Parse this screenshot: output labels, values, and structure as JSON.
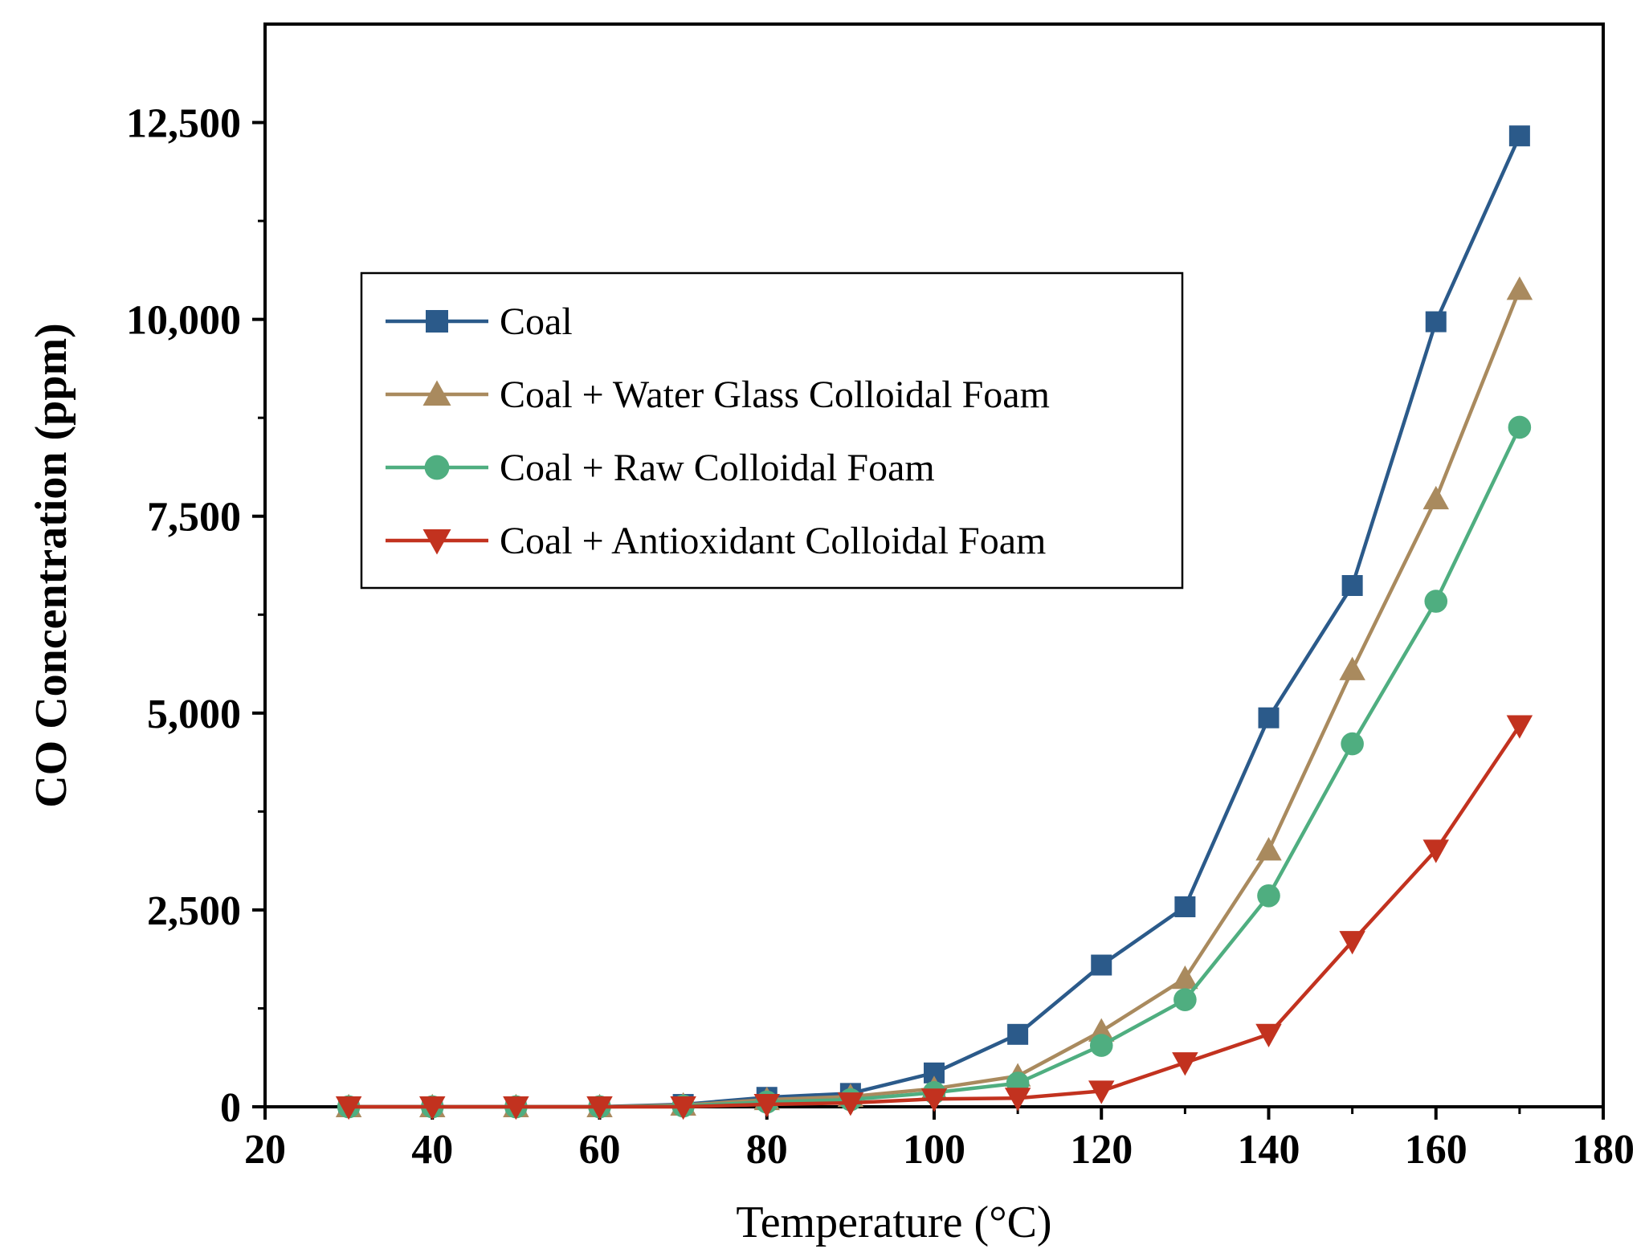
{
  "chart_data": {
    "type": "line",
    "title": "",
    "xlabel": "Temperature (°C)",
    "ylabel": "CO Concentration (ppm)",
    "xlim": [
      20,
      180
    ],
    "ylim": [
      0,
      13750
    ],
    "x_ticks": [
      20,
      40,
      60,
      80,
      100,
      120,
      140,
      160,
      180
    ],
    "x_tick_labels": [
      "20",
      "40",
      "60",
      "80",
      "100",
      "120",
      "140",
      "160",
      "180"
    ],
    "y_ticks": [
      0,
      2500,
      5000,
      7500,
      10000,
      12500
    ],
    "y_tick_labels": [
      "0",
      "2,500",
      "5,000",
      "7,500",
      "10,000",
      "12,500"
    ],
    "legend_position": "upper-left",
    "x": [
      30,
      40,
      50,
      60,
      70,
      80,
      90,
      100,
      110,
      120,
      130,
      140,
      150,
      160,
      170
    ],
    "series": [
      {
        "name": "Coal",
        "color": "#2b5a8a",
        "marker": "square",
        "values": [
          0,
          0,
          0,
          0,
          30,
          120,
          170,
          430,
          920,
          1800,
          2540,
          4940,
          6620,
          9970,
          12330
        ]
      },
      {
        "name": "Coal + Water Glass Colloidal Foam",
        "color": "#a98a5e",
        "marker": "triangle-up",
        "values": [
          0,
          0,
          0,
          0,
          20,
          90,
          130,
          230,
          390,
          960,
          1630,
          3260,
          5550,
          7720,
          10380
        ]
      },
      {
        "name": "Coal + Raw Colloidal Foam",
        "color": "#4fae80",
        "marker": "circle",
        "values": [
          0,
          0,
          0,
          0,
          10,
          60,
          90,
          180,
          300,
          780,
          1360,
          2680,
          4610,
          6420,
          8630
        ]
      },
      {
        "name": "Coal + Antioxidant Colloidal Foam",
        "color": "#c2321f",
        "marker": "triangle-down",
        "values": [
          0,
          0,
          0,
          0,
          0,
          30,
          50,
          100,
          110,
          200,
          560,
          920,
          2100,
          3260,
          4840
        ]
      }
    ]
  }
}
